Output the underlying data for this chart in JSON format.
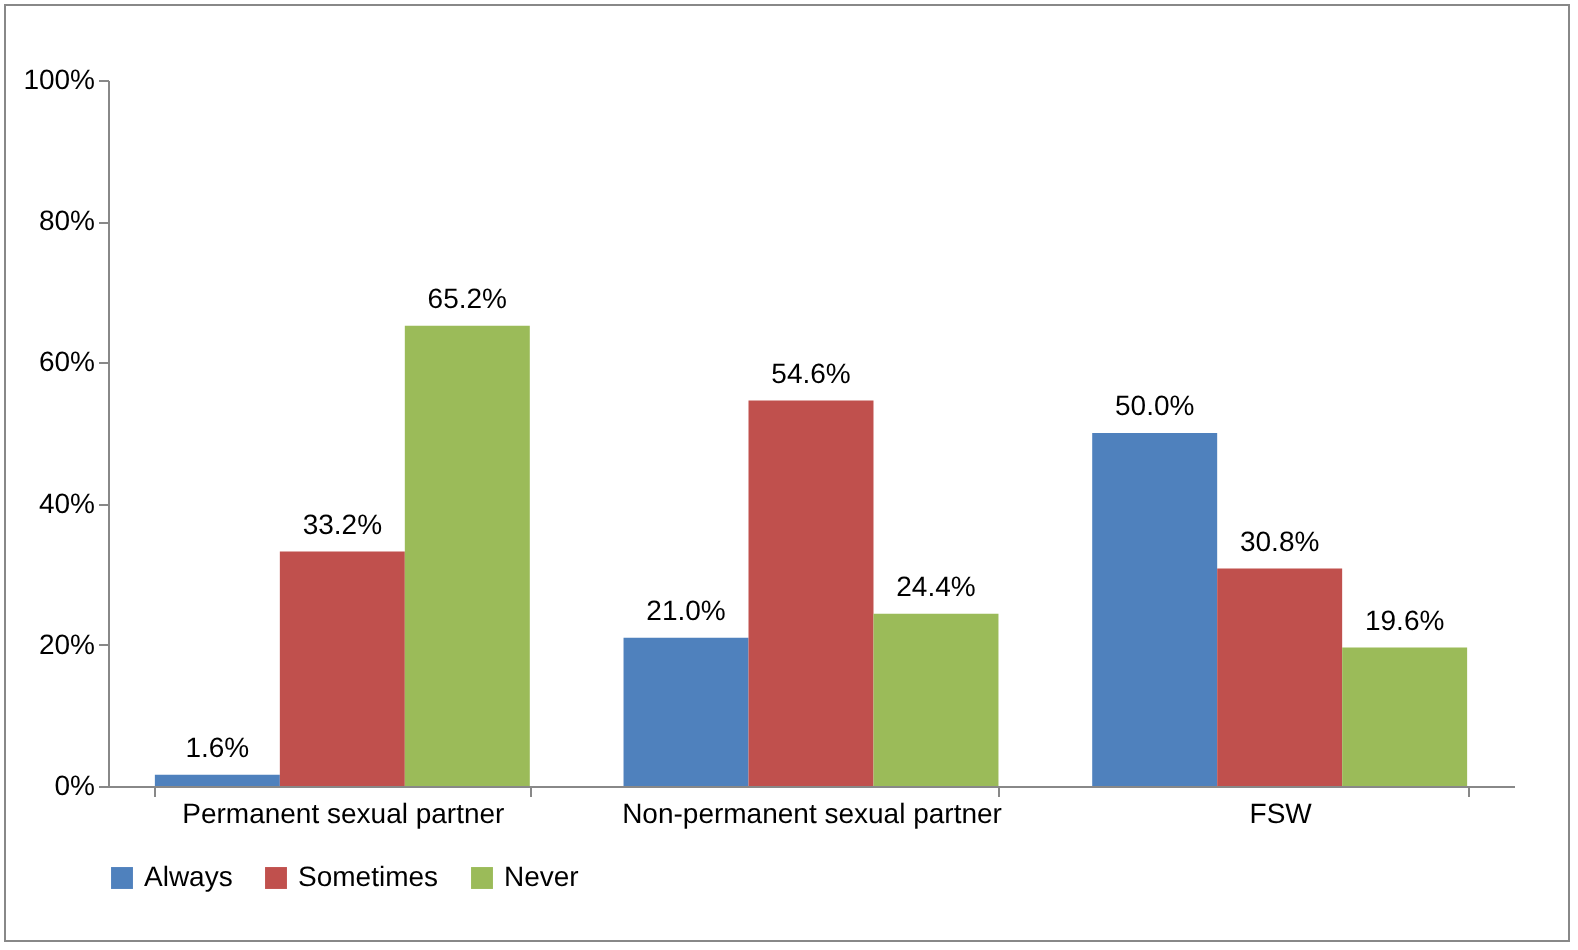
{
  "chart_data": {
    "type": "bar",
    "categories": [
      "Permanent sexual partner",
      "Non-permanent sexual partner",
      "FSW"
    ],
    "series": [
      {
        "name": "Always",
        "color": "#4f81bd",
        "values": [
          1.6,
          21.0,
          50.0
        ],
        "value_labels": [
          "1.6%",
          "21.0%",
          "50.0%"
        ]
      },
      {
        "name": "Sometimes",
        "color": "#c0504d",
        "values": [
          33.2,
          54.6,
          30.8
        ],
        "value_labels": [
          "33.2%",
          "54.6%",
          "30.8%"
        ]
      },
      {
        "name": "Never",
        "color": "#9bbb59",
        "values": [
          65.2,
          24.4,
          19.6
        ],
        "value_labels": [
          "65.2%",
          "24.4%",
          "19.6%"
        ]
      }
    ],
    "ylim": [
      0,
      100
    ],
    "yticks": [
      {
        "value": 0,
        "label": "0%"
      },
      {
        "value": 20,
        "label": "20%"
      },
      {
        "value": 40,
        "label": "40%"
      },
      {
        "value": 60,
        "label": "60%"
      },
      {
        "value": 80,
        "label": "80%"
      },
      {
        "value": 100,
        "label": "100%"
      }
    ],
    "grid": false,
    "legend": "bottom"
  }
}
